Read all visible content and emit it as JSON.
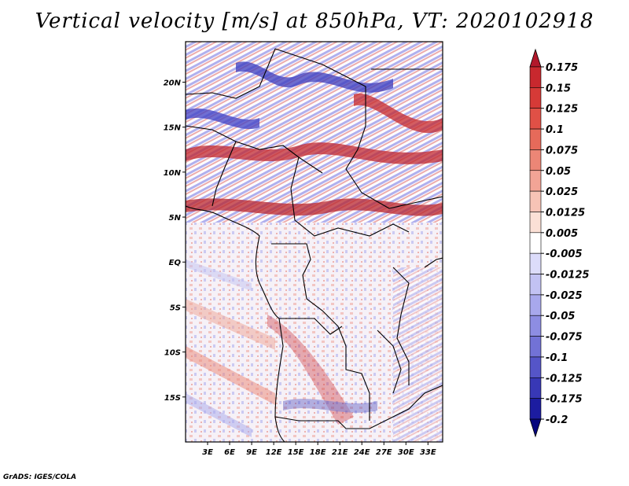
{
  "title": "Vertical velocity [m/s] at 850hPa, VT: 2020102918",
  "footer": "GrADS: IGES/COLA",
  "map": {
    "lat_labels": [
      "20N",
      "15N",
      "10N",
      "5N",
      "EQ",
      "5S",
      "10S",
      "15S"
    ],
    "lon_labels": [
      "3E",
      "6E",
      "9E",
      "12E",
      "15E",
      "18E",
      "21E",
      "24E",
      "27E",
      "30E",
      "33E"
    ],
    "lon_range": [
      0,
      35
    ],
    "lat_range": [
      -20,
      24.5
    ]
  },
  "colorbar": {
    "labels": [
      "0.175",
      "0.15",
      "0.125",
      "0.1",
      "0.075",
      "0.05",
      "0.025",
      "0.0125",
      "0.005",
      "-0.005",
      "-0.0125",
      "-0.025",
      "-0.05",
      "-0.075",
      "-0.1",
      "-0.125",
      "-0.175",
      "-0.2"
    ],
    "colors": [
      "#b2182b",
      "#c8282e",
      "#d63a37",
      "#e05046",
      "#e66a5a",
      "#ec8676",
      "#f2a496",
      "#f7c3b6",
      "#fbe0d6",
      "#ffffff",
      "#dcdcfa",
      "#c2c2f3",
      "#a8a8ec",
      "#8d8de2",
      "#7272d6",
      "#5555c8",
      "#3838b6",
      "#1c1ca0",
      "#06067e"
    ]
  }
}
